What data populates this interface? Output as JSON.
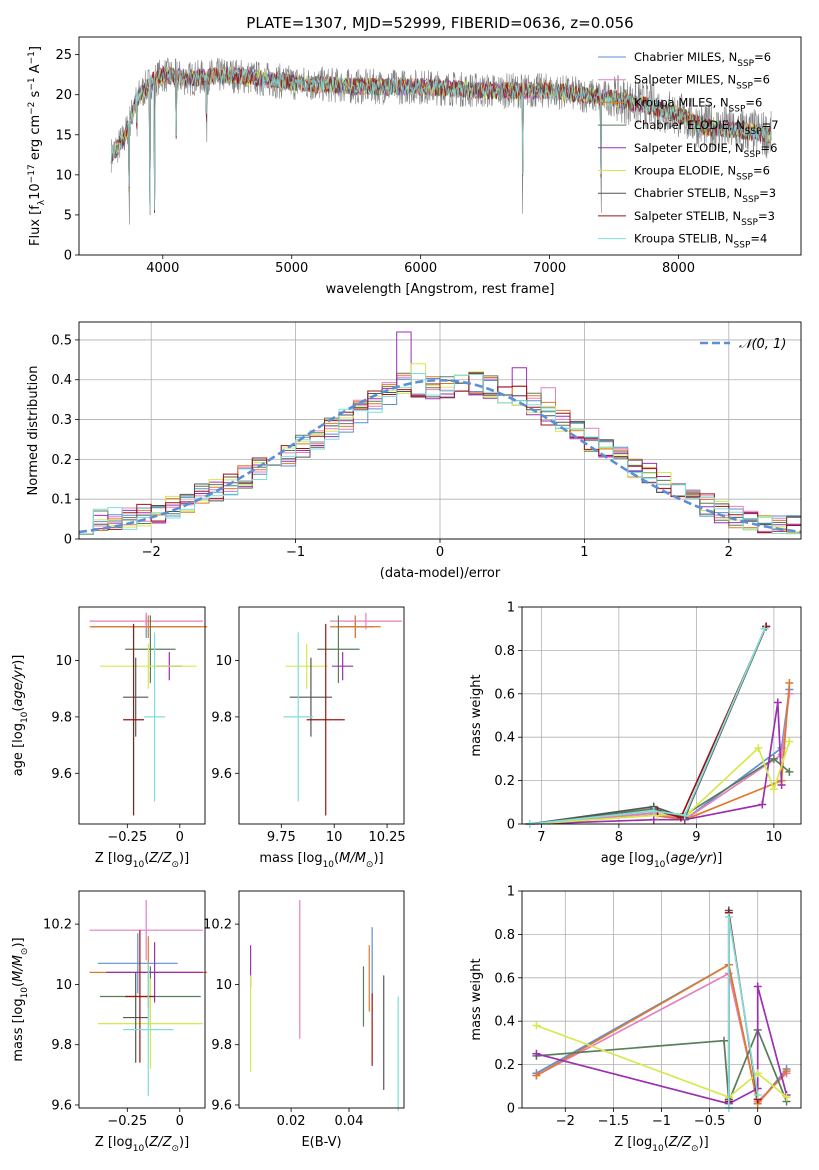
{
  "chart_data": [
    {
      "type": "line",
      "title": "PLATE=1307, MJD=52999, FIBERID=0636, z=0.056",
      "xlabel": "wavelength [Angstrom, rest frame]",
      "ylabel": "Flux [f_λ 10^-17 erg cm^-2 s^-1 A^-1]",
      "xlim": [
        3350,
        8950
      ],
      "ylim": [
        0,
        27.2
      ],
      "xticks": [
        4000,
        5000,
        6000,
        7000,
        8000
      ],
      "yticks": [
        0,
        5,
        10,
        15,
        20,
        25
      ],
      "grid": false,
      "legend_position": "top-right",
      "series": [
        {
          "name": "Chabrier MILES, N_SSP=6",
          "color": "#5b8fd6"
        },
        {
          "name": "Salpeter MILES, N_SSP=6",
          "color": "#e77fbf"
        },
        {
          "name": "Kroupa MILES, N_SSP=6",
          "color": "#e07a2a"
        },
        {
          "name": "Chabrier ELODIE, N_SSP=7",
          "color": "#5a7e5a"
        },
        {
          "name": "Salpeter ELODIE, N_SSP=6",
          "color": "#9b30b0"
        },
        {
          "name": "Kroupa ELODIE, N_SSP=6",
          "color": "#d7e84b"
        },
        {
          "name": "Chabrier STELIB, N_SSP=3",
          "color": "#555555"
        },
        {
          "name": "Salpeter STELIB, N_SSP=3",
          "color": "#9a1515"
        },
        {
          "name": "Kroupa STELIB, N_SSP=4",
          "color": "#7fdedc"
        }
      ],
      "observed_color": "#808080",
      "continuum_points": [
        [
          3600,
          12.5
        ],
        [
          3700,
          14.5
        ],
        [
          3800,
          19.5
        ],
        [
          3900,
          21.5
        ],
        [
          4000,
          22.5
        ],
        [
          4200,
          22.0
        ],
        [
          4500,
          22.5
        ],
        [
          5000,
          21.5
        ],
        [
          5500,
          21.0
        ],
        [
          6000,
          21.0
        ],
        [
          6500,
          20.5
        ],
        [
          7000,
          20.5
        ],
        [
          7500,
          19.5
        ],
        [
          7800,
          18.5
        ],
        [
          8000,
          17.5
        ],
        [
          8200,
          16.0
        ],
        [
          8500,
          15.5
        ],
        [
          8700,
          15.0
        ]
      ],
      "absorption_dips": [
        [
          3740,
          0
        ],
        [
          3800,
          13
        ],
        [
          3900,
          5
        ],
        [
          3935,
          0
        ],
        [
          4105,
          12
        ],
        [
          4340,
          12
        ],
        [
          6790,
          0
        ],
        [
          7400,
          0
        ]
      ]
    },
    {
      "type": "bar",
      "xlabel": "(data-model)/error",
      "ylabel": "Normed distribution",
      "xlim": [
        -2.5,
        2.5
      ],
      "ylim": [
        0,
        0.545
      ],
      "xticks": [
        -2,
        -1,
        0,
        1,
        2
      ],
      "yticks": [
        0.0,
        0.1,
        0.2,
        0.3,
        0.4,
        0.5
      ],
      "grid": true,
      "legend_position": "top-right",
      "reference": {
        "name": "𝒩(0, 1)",
        "color": "#5b8fd6",
        "mean": 0,
        "sd": 1
      },
      "bin_width": 0.1,
      "envelope": {
        "x": [
          -2.5,
          -2.0,
          -1.5,
          -1.0,
          -0.5,
          -0.25,
          0.0,
          0.25,
          0.55,
          1.0,
          1.5,
          2.0,
          2.5
        ],
        "y": [
          0.04,
          0.06,
          0.13,
          0.22,
          0.33,
          0.39,
          0.38,
          0.39,
          0.36,
          0.26,
          0.15,
          0.06,
          0.03
        ]
      },
      "spikes": [
        {
          "series": 4,
          "x": -0.25,
          "y": 0.52
        },
        {
          "series": 5,
          "x": -0.15,
          "y": 0.44
        },
        {
          "series": 4,
          "x": 0.55,
          "y": 0.43
        },
        {
          "series": 1,
          "x": 0.75,
          "y": 0.38
        }
      ]
    },
    {
      "type": "scatter",
      "xlabel": "Z [log10(Z/Z⊙)]",
      "ylabel": "age  [log10(age/yr)]",
      "xlim": [
        -0.48,
        0.12
      ],
      "ylim": [
        9.42,
        10.19
      ],
      "xticks": [
        -0.25,
        0.0
      ],
      "yticks": [
        9.6,
        9.8,
        10.0
      ],
      "grid": false,
      "points": [
        {
          "s": 0,
          "x": -0.16,
          "y": 10.12,
          "xe": 0.26,
          "ye": 0.04
        },
        {
          "s": 1,
          "x": -0.16,
          "y": 10.14,
          "xe": 0.27,
          "ye": 0.03
        },
        {
          "s": 2,
          "x": -0.15,
          "y": 10.12,
          "xe": 0.28,
          "ye": 0.04
        },
        {
          "s": 3,
          "x": -0.14,
          "y": 10.04,
          "xe": 0.12,
          "ye": 0.12
        },
        {
          "s": 4,
          "x": -0.05,
          "y": 9.98,
          "xe": 0.06,
          "ye": 0.05
        },
        {
          "s": 5,
          "x": -0.15,
          "y": 9.98,
          "xe": 0.23,
          "ye": 0.08
        },
        {
          "s": 6,
          "x": -0.21,
          "y": 9.87,
          "xe": 0.06,
          "ye": 0.14
        },
        {
          "s": 7,
          "x": -0.22,
          "y": 9.79,
          "xe": 0.05,
          "ye": 0.34
        },
        {
          "s": 8,
          "x": -0.12,
          "y": 9.8,
          "xe": 0.05,
          "ye": 0.3
        }
      ]
    },
    {
      "type": "scatter",
      "xlabel": "mass [log10(M/M⊙)]",
      "ylabel": "",
      "xlim": [
        9.55,
        10.33
      ],
      "ylim": [
        9.42,
        10.19
      ],
      "xticks": [
        9.75,
        10.0,
        10.25
      ],
      "yticks": [
        9.6,
        9.8,
        10.0
      ],
      "grid": false,
      "points": [
        {
          "s": 0,
          "x": 10.1,
          "y": 10.12,
          "xe": 0.09,
          "ye": 0.04
        },
        {
          "s": 1,
          "x": 10.15,
          "y": 10.14,
          "xe": 0.17,
          "ye": 0.03
        },
        {
          "s": 2,
          "x": 10.1,
          "y": 10.12,
          "xe": 0.12,
          "ye": 0.04
        },
        {
          "s": 3,
          "x": 10.02,
          "y": 10.04,
          "xe": 0.1,
          "ye": 0.12
        },
        {
          "s": 4,
          "x": 10.04,
          "y": 9.98,
          "xe": 0.05,
          "ye": 0.05
        },
        {
          "s": 5,
          "x": 9.87,
          "y": 9.98,
          "xe": 0.1,
          "ye": 0.08
        },
        {
          "s": 6,
          "x": 9.89,
          "y": 9.87,
          "xe": 0.1,
          "ye": 0.14
        },
        {
          "s": 7,
          "x": 9.96,
          "y": 9.79,
          "xe": 0.09,
          "ye": 0.34
        },
        {
          "s": 8,
          "x": 9.83,
          "y": 9.8,
          "xe": 0.07,
          "ye": 0.3
        }
      ]
    },
    {
      "type": "line",
      "xlabel": "age  [log10(age/yr)]",
      "ylabel": "mass weight",
      "xlim": [
        6.75,
        10.35
      ],
      "ylim": [
        0,
        1.0
      ],
      "xticks": [
        7,
        8,
        9,
        10
      ],
      "yticks": [
        0.0,
        0.2,
        0.4,
        0.6,
        0.8,
        1.0
      ],
      "grid": true,
      "series": [
        {
          "s": 0,
          "x": [
            6.85,
            8.45,
            8.85,
            10.1,
            10.2
          ],
          "y": [
            0.0,
            0.05,
            0.02,
            0.35,
            0.62
          ]
        },
        {
          "s": 1,
          "x": [
            6.85,
            8.45,
            8.85,
            10.1,
            10.2
          ],
          "y": [
            0.0,
            0.05,
            0.02,
            0.32,
            0.6
          ]
        },
        {
          "s": 2,
          "x": [
            6.85,
            8.45,
            8.85,
            10.1,
            10.2
          ],
          "y": [
            0.0,
            0.04,
            0.02,
            0.2,
            0.65
          ]
        },
        {
          "s": 3,
          "x": [
            6.85,
            8.45,
            8.8,
            10.0,
            10.2
          ],
          "y": [
            0.0,
            0.07,
            0.03,
            0.3,
            0.24
          ]
        },
        {
          "s": 4,
          "x": [
            6.85,
            8.45,
            8.85,
            9.85,
            10.05,
            10.1
          ],
          "y": [
            0.0,
            0.02,
            0.02,
            0.09,
            0.56,
            0.18
          ]
        },
        {
          "s": 5,
          "x": [
            6.85,
            8.5,
            8.9,
            9.8,
            10.0,
            10.2
          ],
          "y": [
            0.0,
            0.04,
            0.05,
            0.35,
            0.16,
            0.38
          ]
        },
        {
          "s": 6,
          "x": [
            6.85,
            8.45,
            8.85,
            9.9
          ],
          "y": [
            0.0,
            0.08,
            0.03,
            0.91
          ]
        },
        {
          "s": 7,
          "x": [
            8.5,
            8.8,
            9.9
          ],
          "y": [
            0.06,
            0.03,
            0.91
          ]
        },
        {
          "s": 8,
          "x": [
            6.85,
            8.45,
            8.85,
            9.88
          ],
          "y": [
            0.0,
            0.06,
            0.04,
            0.9
          ]
        }
      ]
    },
    {
      "type": "scatter",
      "xlabel": "Z [log10(Z/Z⊙)]",
      "ylabel": "mass [log10(M/M⊙)]",
      "xlim": [
        -0.48,
        0.12
      ],
      "ylim": [
        9.59,
        10.31
      ],
      "xticks": [
        -0.25,
        0.0
      ],
      "yticks": [
        9.6,
        9.8,
        10.0,
        10.2
      ],
      "grid": false,
      "points": [
        {
          "s": 0,
          "x": -0.2,
          "y": 10.07,
          "xe": 0.19,
          "ye": 0.1
        },
        {
          "s": 1,
          "x": -0.16,
          "y": 10.18,
          "xe": 0.27,
          "ye": 0.1
        },
        {
          "s": 2,
          "x": -0.15,
          "y": 10.04,
          "xe": 0.28,
          "ye": 0.12
        },
        {
          "s": 3,
          "x": -0.14,
          "y": 9.96,
          "xe": 0.24,
          "ye": 0.1
        },
        {
          "s": 4,
          "x": -0.12,
          "y": 10.04,
          "xe": 0.23,
          "ye": 0.1
        },
        {
          "s": 5,
          "x": -0.14,
          "y": 9.87,
          "xe": 0.25,
          "ye": 0.15
        },
        {
          "s": 6,
          "x": -0.21,
          "y": 9.89,
          "xe": 0.06,
          "ye": 0.15
        },
        {
          "s": 7,
          "x": -0.19,
          "y": 9.96,
          "xe": 0.07,
          "ye": 0.22
        },
        {
          "s": 8,
          "x": -0.15,
          "y": 9.85,
          "xe": 0.12,
          "ye": 0.22
        }
      ]
    },
    {
      "type": "scatter",
      "xlabel": "E(B-V)",
      "ylabel": "",
      "xlim": [
        0.002,
        0.059
      ],
      "ylim": [
        9.59,
        10.31
      ],
      "xticks": [
        0.02,
        0.04
      ],
      "yticks": [
        9.6,
        9.8,
        10.0,
        10.2
      ],
      "grid": false,
      "points": [
        {
          "s": 0,
          "x": 0.048,
          "y": 10.07,
          "ye": 0.12
        },
        {
          "s": 1,
          "x": 0.023,
          "y": 10.05,
          "ye": 0.23
        },
        {
          "s": 2,
          "x": 0.047,
          "y": 10.02,
          "ye": 0.11
        },
        {
          "s": 3,
          "x": 0.045,
          "y": 9.96,
          "ye": 0.1
        },
        {
          "s": 4,
          "x": 0.006,
          "y": 10.06,
          "ye": 0.07
        },
        {
          "s": 5,
          "x": 0.006,
          "y": 9.87,
          "ye": 0.16
        },
        {
          "s": 6,
          "x": 0.052,
          "y": 9.84,
          "ye": 0.19
        },
        {
          "s": 7,
          "x": 0.048,
          "y": 9.85,
          "ye": 0.12
        },
        {
          "s": 8,
          "x": 0.057,
          "y": 9.77,
          "ye": 0.19
        }
      ]
    },
    {
      "type": "line",
      "xlabel": "Z [log10(Z/Z⊙)]",
      "ylabel": "mass weight",
      "xlim": [
        -2.45,
        0.45
      ],
      "ylim": [
        0,
        1.0
      ],
      "xticks": [
        -2.0,
        -1.5,
        -1.0,
        -0.5,
        0.0
      ],
      "yticks": [
        0.0,
        0.2,
        0.4,
        0.6,
        0.8,
        1.0
      ],
      "grid": true,
      "series": [
        {
          "s": 0,
          "x": [
            -2.3,
            -0.3,
            0.0,
            0.3
          ],
          "y": [
            0.16,
            0.66,
            0.02,
            0.18
          ]
        },
        {
          "s": 1,
          "x": [
            -2.3,
            -0.3,
            0.0,
            0.3
          ],
          "y": [
            0.15,
            0.62,
            0.03,
            0.16
          ]
        },
        {
          "s": 2,
          "x": [
            -2.3,
            -0.3,
            0.0,
            0.3
          ],
          "y": [
            0.15,
            0.66,
            0.02,
            0.17
          ]
        },
        {
          "s": 3,
          "x": [
            -2.3,
            -0.35,
            -0.3,
            0.0,
            0.3
          ],
          "y": [
            0.24,
            0.31,
            0.03,
            0.36,
            0.03
          ]
        },
        {
          "s": 4,
          "x": [
            -2.3,
            -0.3,
            0.0,
            0.0,
            0.3
          ],
          "y": [
            0.25,
            0.02,
            0.09,
            0.56,
            0.06
          ]
        },
        {
          "s": 5,
          "x": [
            -2.3,
            -0.3,
            0.0,
            0.3
          ],
          "y": [
            0.38,
            0.05,
            0.16,
            0.05
          ]
        },
        {
          "s": 6,
          "x": [
            -0.3,
            -0.3
          ],
          "y": [
            0.04,
            0.91
          ]
        },
        {
          "s": 7,
          "x": [
            -0.3,
            -0.3,
            0.0
          ],
          "y": [
            0.03,
            0.9,
            0.04
          ]
        },
        {
          "s": 8,
          "x": [
            -0.3,
            -0.3,
            0.0
          ],
          "y": [
            0.0,
            0.88,
            0.06
          ]
        }
      ]
    }
  ]
}
